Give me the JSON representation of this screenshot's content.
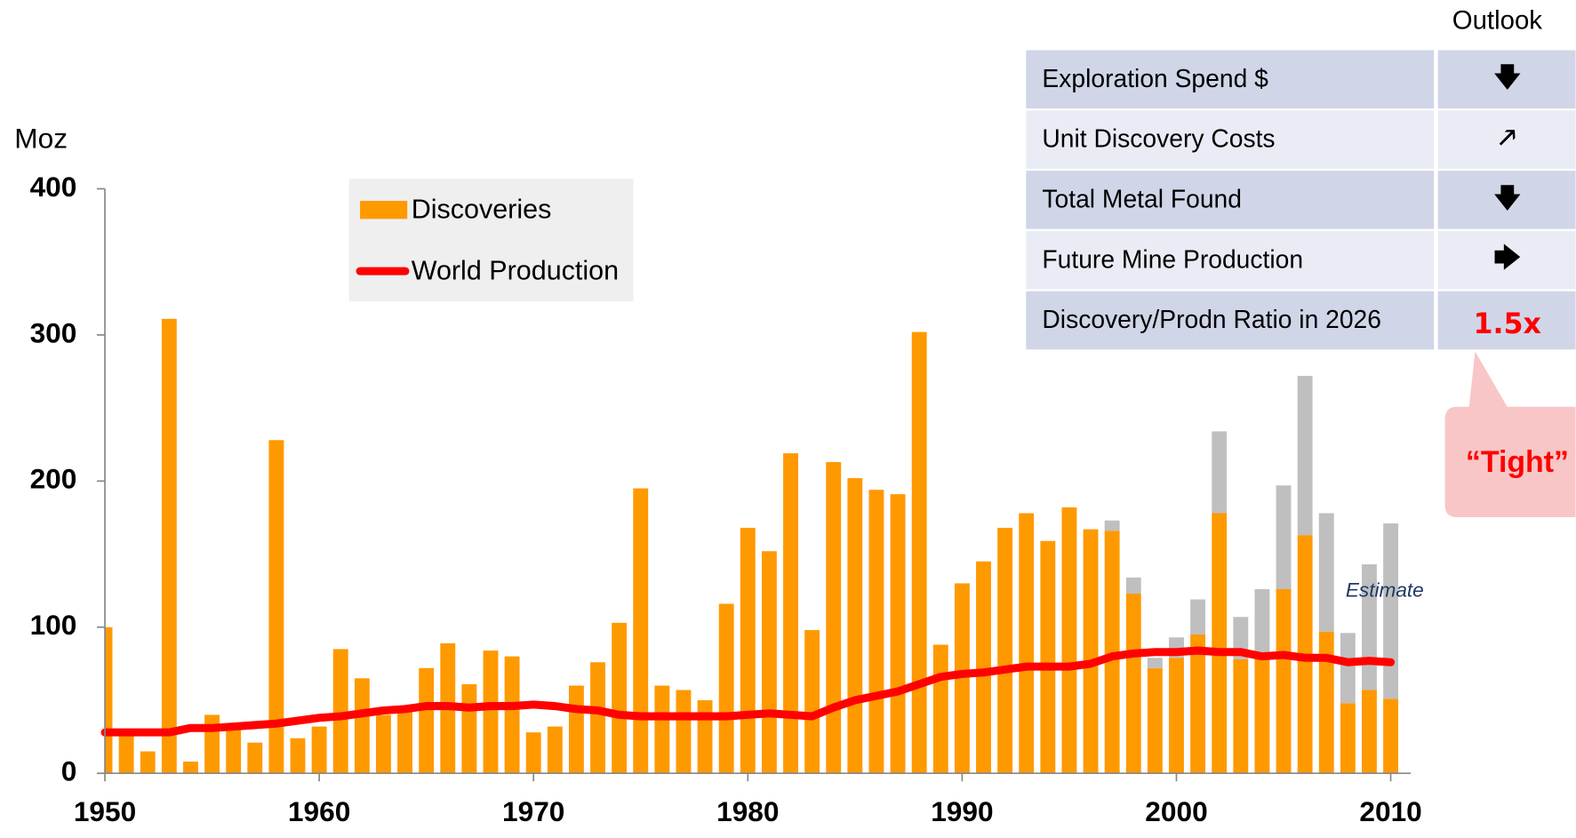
{
  "chart_data": {
    "type": "bar_line",
    "y_label": "Moz",
    "xlim": [
      1950,
      2010
    ],
    "xticks": [
      1950,
      1960,
      1970,
      1980,
      1990,
      2000,
      2010
    ],
    "ylim": [
      0,
      400
    ],
    "yticks": [
      0,
      100,
      200,
      300,
      400
    ],
    "x": [
      1950,
      1951,
      1952,
      1953,
      1954,
      1955,
      1956,
      1957,
      1958,
      1959,
      1960,
      1961,
      1962,
      1963,
      1964,
      1965,
      1966,
      1967,
      1968,
      1969,
      1970,
      1971,
      1972,
      1973,
      1974,
      1975,
      1976,
      1977,
      1978,
      1979,
      1980,
      1981,
      1982,
      1983,
      1984,
      1985,
      1986,
      1987,
      1988,
      1989,
      1990,
      1991,
      1992,
      1993,
      1994,
      1995,
      1996,
      1997,
      1998,
      1999,
      2000,
      2001,
      2002,
      2003,
      2004,
      2005,
      2006,
      2007,
      2008,
      2009,
      2010
    ],
    "series": [
      {
        "name": "Discoveries",
        "color": "#ff9900",
        "values": [
          100,
          27,
          15,
          311,
          8,
          40,
          30,
          21,
          228,
          24,
          32,
          85,
          65,
          40,
          42,
          72,
          89,
          61,
          84,
          80,
          28,
          32,
          60,
          76,
          103,
          195,
          60,
          57,
          50,
          116,
          168,
          152,
          219,
          98,
          213,
          202,
          194,
          191,
          302,
          88,
          130,
          145,
          168,
          178,
          159,
          182,
          167,
          166,
          123,
          72,
          79,
          95,
          178,
          78,
          80,
          126,
          163,
          97,
          48,
          57,
          51
        ]
      },
      {
        "name": "Estimate",
        "color": "#bfbfbf",
        "values": [
          null,
          null,
          null,
          null,
          null,
          null,
          null,
          null,
          null,
          null,
          null,
          null,
          null,
          null,
          null,
          null,
          null,
          null,
          null,
          null,
          null,
          null,
          null,
          null,
          null,
          null,
          null,
          null,
          null,
          null,
          null,
          null,
          null,
          null,
          null,
          null,
          null,
          null,
          null,
          null,
          null,
          null,
          null,
          null,
          null,
          null,
          null,
          7,
          11,
          7,
          14,
          24,
          56,
          29,
          46,
          71,
          109,
          81,
          48,
          86,
          120
        ]
      },
      {
        "name": "World Production",
        "color": "#ff0000",
        "values": [
          28,
          28,
          28,
          28,
          31,
          31,
          32,
          33,
          34,
          36,
          38,
          39,
          41,
          43,
          44,
          46,
          46,
          45,
          46,
          46,
          47,
          46,
          44,
          43,
          40,
          39,
          39,
          39,
          39,
          39,
          40,
          41,
          40,
          39,
          45,
          50,
          53,
          56,
          61,
          66,
          68,
          69,
          71,
          73,
          73,
          73,
          75,
          80,
          82,
          83,
          83,
          84,
          83,
          83,
          80,
          81,
          79,
          79,
          76,
          77,
          76
        ]
      }
    ]
  },
  "outlook_table": {
    "header": "Outlook",
    "rows": [
      [
        "Exploration Spend $",
        "🡇"
      ],
      [
        "Unit Discovery Costs",
        "🡕"
      ],
      [
        "Total Metal Found",
        "🡇"
      ],
      [
        "Future Mine Production",
        "🡆"
      ],
      [
        "Discovery/Prodn Ratio in 2026",
        "1.5x"
      ]
    ]
  },
  "callout": "“Tight”"
}
